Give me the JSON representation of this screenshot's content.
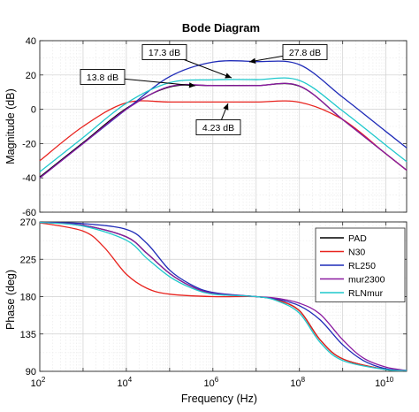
{
  "chart_data": [
    {
      "type": "line",
      "title": "Bode Diagram",
      "xlabel": "",
      "ylabel": "Magnitude (dB)",
      "xscale": "log",
      "xlim": [
        100,
        30000000000
      ],
      "ylim": [
        -60,
        40
      ],
      "yticks": [
        -60,
        -40,
        -20,
        0,
        20,
        40
      ],
      "grid": "on (major and minor)",
      "series": [
        {
          "name": "PAD",
          "color": "#000000",
          "points": [
            [
              100,
              -39.5
            ],
            [
              1000,
              -19.5
            ],
            [
              10000,
              0.5
            ],
            [
              100000,
              13
            ],
            [
              1000000,
              13.8
            ],
            [
              10000000,
              13.8
            ],
            [
              100000000,
              13.5
            ],
            [
              1000000000,
              -6
            ],
            [
              10000000000,
              -26
            ],
            [
              30000000000,
              -35.5
            ]
          ]
        },
        {
          "name": "N30",
          "color": "#e8231e",
          "points": [
            [
              100,
              -30
            ],
            [
              1000,
              -10
            ],
            [
              10000,
              3.8
            ],
            [
              100000,
              4.23
            ],
            [
              1000000,
              4.23
            ],
            [
              10000000,
              4.23
            ],
            [
              100000000,
              4.1
            ],
            [
              1000000000,
              -6
            ],
            [
              10000000000,
              -26
            ],
            [
              30000000000,
              -35.5
            ]
          ]
        },
        {
          "name": "RL250",
          "color": "#1f2bb8",
          "points": [
            [
              100,
              -40
            ],
            [
              1000,
              -20
            ],
            [
              10000,
              0
            ],
            [
              100000,
              19
            ],
            [
              1000000,
              27.5
            ],
            [
              10000000,
              27.8
            ],
            [
              100000000,
              26
            ],
            [
              1000000000,
              7
            ],
            [
              10000000000,
              -13
            ],
            [
              30000000000,
              -22.5
            ]
          ]
        },
        {
          "name": "mur2300",
          "color": "#8a1aa0",
          "points": [
            [
              100,
              -40
            ],
            [
              1000,
              -20
            ],
            [
              10000,
              0
            ],
            [
              100000,
              13.3
            ],
            [
              1000000,
              13.8
            ],
            [
              10000000,
              13.8
            ],
            [
              100000000,
              13.6
            ],
            [
              1000000000,
              -6
            ],
            [
              10000000000,
              -26
            ],
            [
              30000000000,
              -35.5
            ]
          ]
        },
        {
          "name": "RLNmur",
          "color": "#1fc8cc",
          "points": [
            [
              100,
              -36.5
            ],
            [
              1000,
              -16.5
            ],
            [
              10000,
              3.5
            ],
            [
              100000,
              15.5
            ],
            [
              1000000,
              17.2
            ],
            [
              10000000,
              17.3
            ],
            [
              100000000,
              16.8
            ],
            [
              1000000000,
              -1
            ],
            [
              10000000000,
              -21
            ],
            [
              30000000000,
              -30.5
            ]
          ]
        }
      ],
      "annotations": [
        {
          "text": "17.3 dB",
          "x": 5000000,
          "y": 17.3
        },
        {
          "text": "27.8 dB",
          "x": 50000000,
          "y": 27.8
        },
        {
          "text": "13.8 dB",
          "x": 40000,
          "y": 13.8
        },
        {
          "text": "4.23 dB",
          "x": 1500000,
          "y": 4.23
        }
      ]
    },
    {
      "type": "line",
      "xlabel": "Frequency  (Hz)",
      "ylabel": "Phase (deg)",
      "xscale": "log",
      "xlim": [
        100,
        30000000000
      ],
      "xticks": [
        100,
        10000,
        1000000,
        100000000,
        10000000000
      ],
      "xtick_labels": [
        {
          "base": "10",
          "exp": "2"
        },
        {
          "base": "10",
          "exp": "4"
        },
        {
          "base": "10",
          "exp": "6"
        },
        {
          "base": "10",
          "exp": "8"
        },
        {
          "base": "10",
          "exp": "10"
        }
      ],
      "ylim": [
        90,
        270
      ],
      "yticks": [
        90,
        135,
        180,
        225,
        270
      ],
      "grid": "on (major and minor)",
      "legend": {
        "position": "top-right",
        "entries": [
          "PAD",
          "N30",
          "RL250",
          "mur2300",
          "RLNmur"
        ]
      },
      "series": [
        {
          "name": "PAD",
          "color": "#000000",
          "points": [
            [
              100,
              269.5
            ],
            [
              1000,
              266
            ],
            [
              10000,
              252
            ],
            [
              30000,
              232
            ],
            [
              100000,
              208
            ],
            [
              300000,
              193
            ],
            [
              1000000,
              184
            ],
            [
              10000000,
              180
            ],
            [
              30000000,
              176
            ],
            [
              100000000,
              163
            ],
            [
              300000000,
              128
            ],
            [
              1000000000,
              105
            ],
            [
              10000000000,
              92
            ],
            [
              30000000000,
              91
            ]
          ]
        },
        {
          "name": "N30",
          "color": "#e8231e",
          "points": [
            [
              100,
              269
            ],
            [
              1000,
              259
            ],
            [
              3000,
              240
            ],
            [
              10000,
              207
            ],
            [
              30000,
              190
            ],
            [
              100000,
              183
            ],
            [
              1000000,
              180
            ],
            [
              10000000,
              180
            ],
            [
              30000000,
              176
            ],
            [
              100000000,
              163
            ],
            [
              300000000,
              128
            ],
            [
              1000000000,
              105
            ],
            [
              10000000000,
              92
            ],
            [
              30000000000,
              91
            ]
          ]
        },
        {
          "name": "RL250",
          "color": "#1f2bb8",
          "points": [
            [
              100,
              269.5
            ],
            [
              1000,
              268
            ],
            [
              10000,
              261
            ],
            [
              30000,
              244
            ],
            [
              100000,
              212
            ],
            [
              300000,
              195
            ],
            [
              1000000,
              185
            ],
            [
              10000000,
              180
            ],
            [
              30000000,
              177
            ],
            [
              100000000,
              169
            ],
            [
              300000000,
              152
            ],
            [
              1000000000,
              122
            ],
            [
              3000000000,
              103
            ],
            [
              10000000000,
              93
            ],
            [
              30000000000,
              91
            ]
          ]
        },
        {
          "name": "mur2300",
          "color": "#8a1aa0",
          "points": [
            [
              100,
              269.5
            ],
            [
              1000,
              266
            ],
            [
              10000,
              252
            ],
            [
              30000,
              232
            ],
            [
              100000,
              208
            ],
            [
              300000,
              193
            ],
            [
              1000000,
              184
            ],
            [
              10000000,
              180
            ],
            [
              30000000,
              178
            ],
            [
              100000000,
              172
            ],
            [
              300000000,
              159
            ],
            [
              1000000000,
              128
            ],
            [
              3000000000,
              106
            ],
            [
              10000000000,
              95
            ],
            [
              30000000000,
              91
            ]
          ]
        },
        {
          "name": "RLNmur",
          "color": "#1fc8cc",
          "points": [
            [
              100,
              269.5
            ],
            [
              1000,
              265
            ],
            [
              10000,
              248
            ],
            [
              30000,
              226
            ],
            [
              100000,
              204
            ],
            [
              300000,
              191
            ],
            [
              1000000,
              183
            ],
            [
              10000000,
              180
            ],
            [
              30000000,
              175
            ],
            [
              100000000,
              160
            ],
            [
              300000000,
              125
            ],
            [
              1000000000,
              103
            ],
            [
              10000000000,
              92
            ],
            [
              30000000000,
              91
            ]
          ]
        }
      ]
    }
  ]
}
